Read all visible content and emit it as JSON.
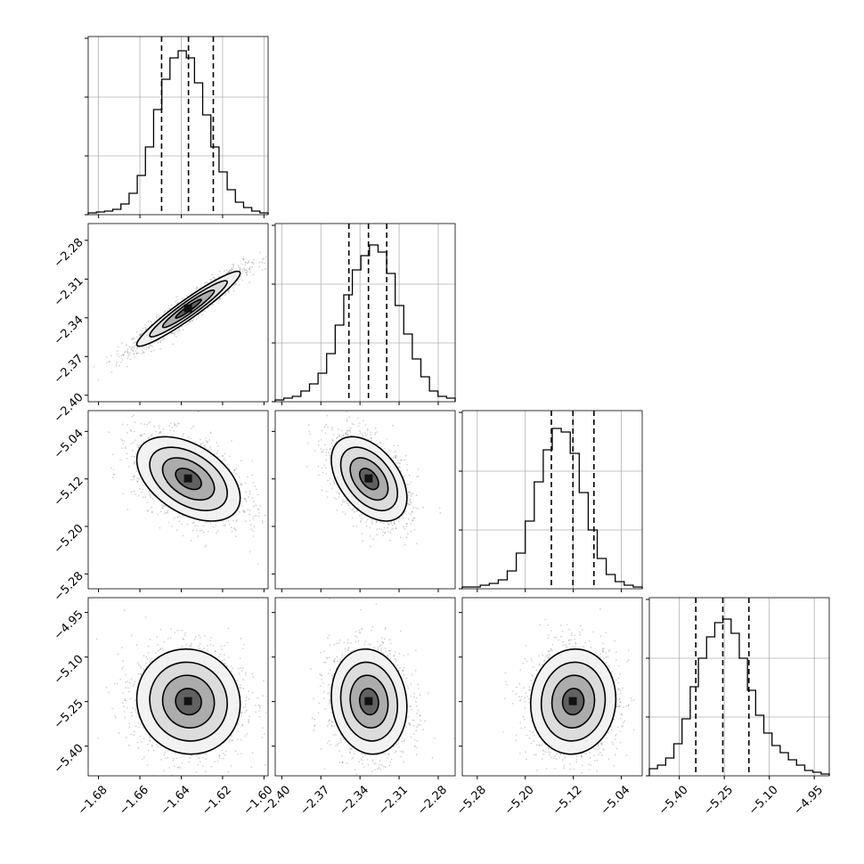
{
  "chart_data": {
    "type": "corner",
    "parameters": [
      {
        "index": 0,
        "range": [
          -1.685,
          -1.598
        ],
        "ticks": [
          -1.68,
          -1.66,
          -1.64,
          -1.62,
          -1.6
        ],
        "tick_labels": [
          "−1.68",
          "−1.66",
          "−1.64",
          "−1.62",
          "−1.60"
        ],
        "quantiles": [
          -1.6495,
          -1.6365,
          -1.6245
        ],
        "peak": -1.6365,
        "hist": [
          0.01,
          0.015,
          0.02,
          0.03,
          0.06,
          0.12,
          0.22,
          0.38,
          0.59,
          0.76,
          0.88,
          0.92,
          0.88,
          0.74,
          0.56,
          0.38,
          0.24,
          0.14,
          0.07,
          0.04,
          0.02,
          0.01
        ]
      },
      {
        "index": 1,
        "range": [
          -2.405,
          -2.267
        ],
        "ticks": [
          -2.4,
          -2.37,
          -2.34,
          -2.31,
          -2.28
        ],
        "tick_labels": [
          "−2.40",
          "−2.37",
          "−2.34",
          "−2.31",
          "−2.28"
        ],
        "quantiles": [
          -2.3485,
          -2.3335,
          -2.3195
        ],
        "peak": -2.333,
        "hist": [
          0.01,
          0.02,
          0.03,
          0.06,
          0.1,
          0.16,
          0.27,
          0.43,
          0.6,
          0.74,
          0.82,
          0.88,
          0.84,
          0.72,
          0.54,
          0.38,
          0.24,
          0.14,
          0.06,
          0.03,
          0.02
        ]
      },
      {
        "index": 2,
        "range": [
          -5.305,
          -5.005
        ],
        "ticks": [
          -5.28,
          -5.2,
          -5.12,
          -5.04
        ],
        "tick_labels": [
          "−5.28",
          "−5.20",
          "−5.12",
          "−5.04"
        ],
        "quantiles": [
          -5.1565,
          -5.1205,
          -5.0855
        ],
        "peak": -5.12,
        "hist": [
          0.01,
          0.01,
          0.02,
          0.03,
          0.05,
          0.1,
          0.2,
          0.38,
          0.6,
          0.78,
          0.9,
          0.88,
          0.76,
          0.54,
          0.33,
          0.17,
          0.08,
          0.04,
          0.02,
          0.01
        ]
      },
      {
        "index": 3,
        "range": [
          -5.5,
          -4.9
        ],
        "ticks": [
          -5.4,
          -5.25,
          -5.1,
          -4.95
        ],
        "tick_labels": [
          "−5.40",
          "−5.25",
          "−5.10",
          "−4.95"
        ],
        "quantiles": [
          -5.345,
          -5.255,
          -5.168
        ],
        "peak": -5.25,
        "hist": [
          0.04,
          0.06,
          0.1,
          0.18,
          0.32,
          0.5,
          0.66,
          0.78,
          0.86,
          0.88,
          0.8,
          0.66,
          0.48,
          0.34,
          0.24,
          0.17,
          0.13,
          0.09,
          0.06,
          0.03,
          0.02,
          0.01
        ]
      }
    ],
    "pairs": [
      {
        "x": 0,
        "y": 1,
        "rho": 0.95
      },
      {
        "x": 0,
        "y": 2,
        "rho": -0.45
      },
      {
        "x": 1,
        "y": 2,
        "rho": -0.45
      },
      {
        "x": 0,
        "y": 3,
        "rho": -0.05
      },
      {
        "x": 1,
        "y": 3,
        "rho": -0.1
      },
      {
        "x": 2,
        "y": 3,
        "rho": 0.05
      }
    ],
    "grid": true,
    "contour_levels": 4,
    "colors": {
      "line": "#000000",
      "scatter": "#7f7f7f",
      "grid": "#b0b0b0",
      "quantile": "#000000"
    }
  }
}
